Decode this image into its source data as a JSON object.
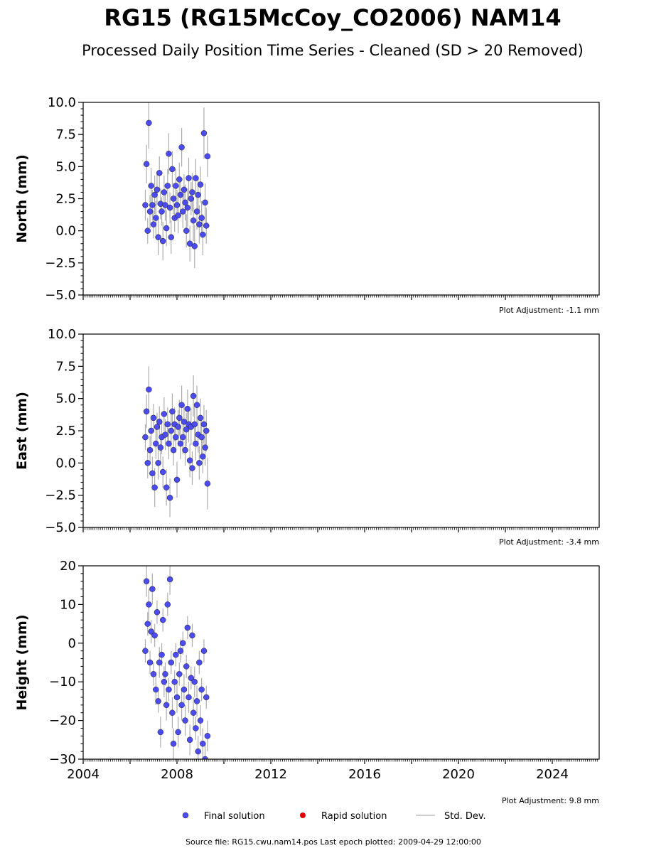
{
  "title": "RG15 (RG15McCoy_CO2006) NAM14",
  "subtitle": "Processed Daily Position Time Series - Cleaned (SD > 20 Removed)",
  "legend": {
    "final": "Final solution",
    "rapid": "Rapid solution",
    "std": "Std. Dev."
  },
  "footer": "Source file: RG15.cwu.nam14.pos  Last epoch plotted: 2009-04-29 12:00:00",
  "colors": {
    "final": "#4b4bf0",
    "rapid": "#e00000",
    "std": "#bbbbbb"
  },
  "chart_data": [
    {
      "type": "scatter",
      "ylabel": "North (mm)",
      "ylim": [
        -5,
        10
      ],
      "yticks": [
        10.0,
        7.5,
        5.0,
        2.5,
        0.0,
        -2.5,
        -5.0
      ],
      "ytick_labels": [
        "10.0",
        "7.5",
        "5.0",
        "2.5",
        "0.0",
        "−2.5",
        "−5.0"
      ],
      "xlim": [
        2004,
        2026
      ],
      "xticks": [
        2004,
        2008,
        2012,
        2016,
        2020,
        2024
      ],
      "show_xtick_labels": false,
      "adjustment": "Plot Adjustment: -1.1 mm",
      "series": [
        {
          "x": [
            2006.65,
            2006.7,
            2006.75,
            2006.8,
            2006.85,
            2006.9,
            2006.95,
            2007.0,
            2007.05,
            2007.1,
            2007.15,
            2007.2,
            2007.25,
            2007.3,
            2007.35,
            2007.4,
            2007.45,
            2007.5,
            2007.55,
            2007.6,
            2007.65,
            2007.7,
            2007.75,
            2007.8,
            2007.85,
            2007.9,
            2007.95,
            2008.0,
            2008.05,
            2008.1,
            2008.15,
            2008.2,
            2008.25,
            2008.3,
            2008.35,
            2008.4,
            2008.45,
            2008.5,
            2008.55,
            2008.6,
            2008.65,
            2008.7,
            2008.75,
            2008.8,
            2008.85,
            2008.9,
            2008.95,
            2009.0,
            2009.05,
            2009.1,
            2009.15,
            2009.2,
            2009.25,
            2009.3
          ],
          "y": [
            2.0,
            5.2,
            0.0,
            8.4,
            1.5,
            3.5,
            2.0,
            0.5,
            2.8,
            1.0,
            3.2,
            -0.5,
            4.5,
            2.1,
            1.5,
            -0.8,
            3.0,
            2.0,
            0.2,
            3.5,
            6.0,
            1.8,
            -0.5,
            4.8,
            2.5,
            1.0,
            3.5,
            2.0,
            1.2,
            4.0,
            2.8,
            6.5,
            1.5,
            3.2,
            2.2,
            0.0,
            1.8,
            4.1,
            -1.0,
            2.5,
            3.0,
            0.8,
            -1.2,
            4.1,
            1.5,
            2.8,
            0.5,
            3.6,
            1.0,
            -0.3,
            7.6,
            2.2,
            0.4,
            5.8
          ],
          "err": [
            1.2,
            1.5,
            1.0,
            2.0,
            1.3,
            1.4,
            1.2,
            1.1,
            1.5,
            1.3,
            1.2,
            1.4,
            1.3,
            1.2,
            1.1,
            1.5,
            1.3,
            1.2,
            1.4,
            1.3,
            1.6,
            1.2,
            1.3,
            1.4,
            1.2,
            1.1,
            1.3,
            1.2,
            1.4,
            1.3,
            1.2,
            1.5,
            1.3,
            1.2,
            1.4,
            1.3,
            1.5,
            1.6,
            1.4,
            1.3,
            1.5,
            1.6,
            1.7,
            1.5,
            1.4,
            1.3,
            1.5,
            1.4,
            1.3,
            1.6,
            2.0,
            1.5,
            1.4,
            1.6
          ]
        }
      ]
    },
    {
      "type": "scatter",
      "ylabel": "East (mm)",
      "ylim": [
        -5,
        10
      ],
      "yticks": [
        10.0,
        7.5,
        5.0,
        2.5,
        0.0,
        -2.5,
        -5.0
      ],
      "ytick_labels": [
        "10.0",
        "7.5",
        "5.0",
        "2.5",
        "0.0",
        "−2.5",
        "−5.0"
      ],
      "xlim": [
        2004,
        2026
      ],
      "xticks": [
        2004,
        2008,
        2012,
        2016,
        2020,
        2024
      ],
      "show_xtick_labels": false,
      "adjustment": "Plot Adjustment: -3.4 mm",
      "series": [
        {
          "x": [
            2006.65,
            2006.7,
            2006.75,
            2006.8,
            2006.85,
            2006.9,
            2006.95,
            2007.0,
            2007.05,
            2007.1,
            2007.15,
            2007.2,
            2007.25,
            2007.3,
            2007.35,
            2007.4,
            2007.45,
            2007.5,
            2007.55,
            2007.6,
            2007.65,
            2007.7,
            2007.75,
            2007.8,
            2007.85,
            2007.9,
            2007.95,
            2008.0,
            2008.05,
            2008.1,
            2008.15,
            2008.2,
            2008.25,
            2008.3,
            2008.35,
            2008.4,
            2008.45,
            2008.5,
            2008.55,
            2008.6,
            2008.65,
            2008.7,
            2008.75,
            2008.8,
            2008.85,
            2008.9,
            2008.95,
            2009.0,
            2009.05,
            2009.1,
            2009.15,
            2009.2,
            2009.25,
            2009.3
          ],
          "y": [
            2.0,
            4.0,
            0.0,
            5.7,
            1.0,
            2.5,
            -0.8,
            3.5,
            -1.9,
            1.5,
            2.8,
            0.0,
            3.2,
            1.2,
            2.0,
            -0.7,
            3.8,
            2.2,
            -1.9,
            3.0,
            1.5,
            -2.7,
            2.5,
            4.0,
            1.0,
            3.0,
            2.0,
            -1.3,
            2.8,
            3.5,
            1.5,
            4.5,
            2.0,
            3.2,
            1.0,
            2.6,
            4.2,
            3.0,
            0.2,
            2.8,
            -0.4,
            5.2,
            3.0,
            1.5,
            4.5,
            2.2,
            0.0,
            3.5,
            2.0,
            0.5,
            3.0,
            1.2,
            2.5,
            -1.6
          ],
          "err": [
            1.0,
            1.3,
            1.2,
            1.8,
            1.1,
            1.2,
            1.3,
            1.1,
            1.5,
            1.2,
            1.1,
            1.3,
            1.2,
            1.1,
            1.3,
            1.2,
            1.3,
            1.2,
            1.4,
            1.3,
            1.2,
            1.5,
            1.3,
            1.4,
            1.2,
            1.3,
            1.2,
            1.4,
            1.3,
            1.4,
            1.2,
            1.5,
            1.3,
            1.4,
            1.2,
            1.3,
            1.5,
            1.4,
            1.3,
            1.4,
            1.3,
            1.6,
            1.4,
            1.3,
            1.5,
            1.4,
            1.3,
            1.5,
            1.4,
            1.3,
            1.5,
            1.4,
            1.6,
            2.0
          ]
        }
      ]
    },
    {
      "type": "scatter",
      "ylabel": "Height (mm)",
      "ylim": [
        -30,
        20
      ],
      "yticks": [
        20,
        10,
        0,
        -10,
        -20,
        -30
      ],
      "ytick_labels": [
        "20",
        "10",
        "0",
        "−10",
        "−20",
        "−30"
      ],
      "xlim": [
        2004,
        2026
      ],
      "xticks": [
        2004,
        2008,
        2012,
        2016,
        2020,
        2024
      ],
      "xtick_labels": [
        "2004",
        "2008",
        "2012",
        "2016",
        "2020",
        "2024"
      ],
      "show_xtick_labels": true,
      "adjustment": "Plot Adjustment: 9.8 mm",
      "series": [
        {
          "x": [
            2006.65,
            2006.7,
            2006.75,
            2006.8,
            2006.85,
            2006.9,
            2006.95,
            2007.0,
            2007.05,
            2007.1,
            2007.15,
            2007.2,
            2007.25,
            2007.3,
            2007.35,
            2007.4,
            2007.45,
            2007.5,
            2007.55,
            2007.6,
            2007.65,
            2007.7,
            2007.75,
            2007.8,
            2007.85,
            2007.9,
            2007.95,
            2008.0,
            2008.05,
            2008.1,
            2008.15,
            2008.2,
            2008.25,
            2008.3,
            2008.35,
            2008.4,
            2008.45,
            2008.5,
            2008.55,
            2008.6,
            2008.65,
            2008.7,
            2008.75,
            2008.8,
            2008.85,
            2008.9,
            2008.95,
            2009.0,
            2009.05,
            2009.1,
            2009.15,
            2009.2,
            2009.25,
            2009.3
          ],
          "y": [
            -2,
            16,
            5,
            10,
            -5,
            3,
            14,
            -8,
            2,
            -12,
            8,
            -15,
            -5,
            -23,
            -3,
            6,
            -10,
            -8,
            -16,
            10,
            -12,
            16.5,
            -5,
            -18,
            -26,
            -10,
            -3,
            -14,
            -23,
            -8,
            -2,
            -16,
            0,
            -12,
            -20,
            -6,
            4,
            -14,
            -25,
            -9,
            2,
            -18,
            -10,
            -22,
            -15,
            -28,
            -5,
            -20,
            -12,
            -26,
            -2,
            -30,
            -14,
            -24
          ],
          "err": [
            3,
            4,
            3,
            4,
            3,
            3,
            4,
            3,
            3,
            4,
            3,
            3,
            4,
            4,
            3,
            3,
            4,
            3,
            4,
            3,
            3,
            4,
            3,
            4,
            4,
            3,
            3,
            4,
            4,
            3,
            3,
            4,
            3,
            4,
            4,
            3,
            3,
            4,
            4,
            3,
            3,
            4,
            4,
            3,
            4,
            4,
            3,
            4,
            3,
            4,
            3,
            4,
            3,
            4
          ]
        }
      ]
    }
  ]
}
